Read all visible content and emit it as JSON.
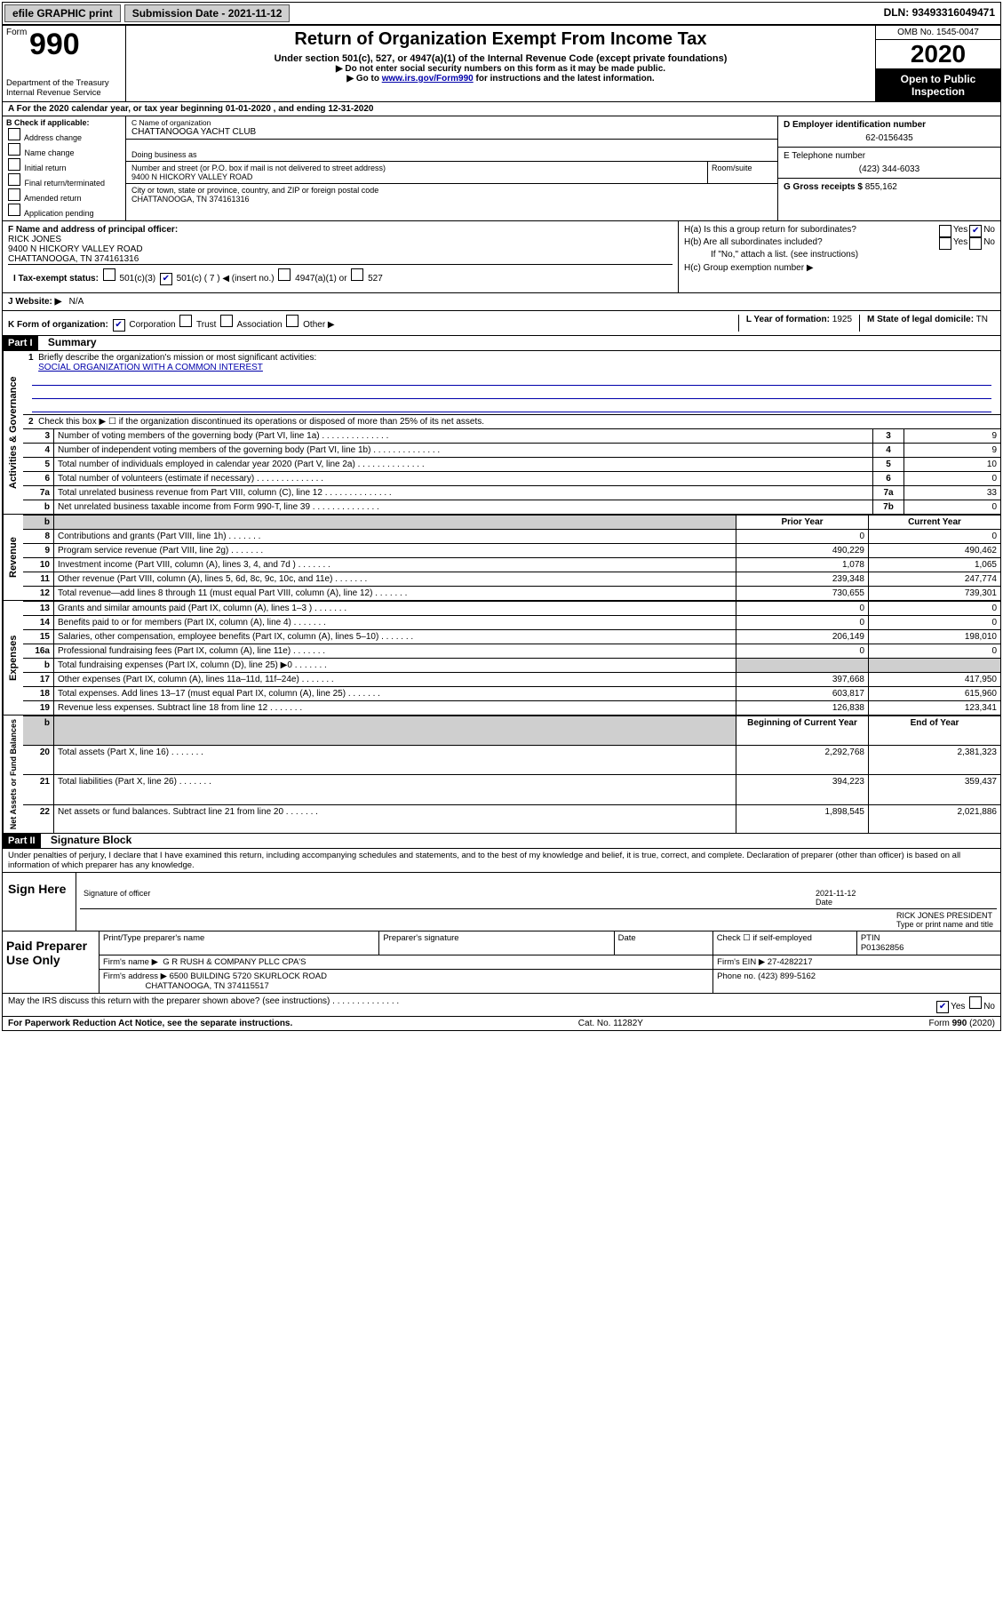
{
  "topbar": {
    "efile": "efile GRAPHIC print",
    "submission_label": "Submission Date - ",
    "submission_date": "2021-11-12",
    "dln_label": "DLN: ",
    "dln": "93493316049471"
  },
  "header": {
    "form_word": "Form",
    "form_number": "990",
    "dept": "Department of the Treasury",
    "irs": "Internal Revenue Service",
    "title": "Return of Organization Exempt From Income Tax",
    "subtitle": "Under section 501(c), 527, or 4947(a)(1) of the Internal Revenue Code (except private foundations)",
    "inst1": "▶ Do not enter social security numbers on this form as it may be made public.",
    "inst2_pre": "▶ Go to ",
    "inst2_link": "www.irs.gov/Form990",
    "inst2_post": " for instructions and the latest information.",
    "omb": "OMB No. 1545-0047",
    "year": "2020",
    "open": "Open to Public Inspection"
  },
  "a_row": "A For the 2020 calendar year, or tax year beginning 01-01-2020   , and ending 12-31-2020",
  "section_b": {
    "label": "B Check if applicable:",
    "opts": [
      "Address change",
      "Name change",
      "Initial return",
      "Final return/terminated",
      "Amended return",
      "Application pending"
    ]
  },
  "section_c": {
    "name_label": "C Name of organization",
    "name": "CHATTANOOGA YACHT CLUB",
    "dba_label": "Doing business as",
    "addr_label": "Number and street (or P.O. box if mail is not delivered to street address)",
    "room_label": "Room/suite",
    "addr": "9400 N HICKORY VALLEY ROAD",
    "city_label": "City or town, state or province, country, and ZIP or foreign postal code",
    "city": "CHATTANOOGA, TN  374161316"
  },
  "section_d": {
    "label": "D Employer identification number",
    "value": "62-0156435"
  },
  "section_e": {
    "label": "E Telephone number",
    "value": "(423) 344-6033"
  },
  "section_g": {
    "label": "G Gross receipts $",
    "value": "855,162"
  },
  "section_f": {
    "label": "F Name and address of principal officer:",
    "name": "RICK JONES",
    "addr1": "9400 N HICKORY VALLEY ROAD",
    "addr2": "CHATTANOOGA, TN  374161316"
  },
  "section_h": {
    "ha": "H(a)  Is this a group return for subordinates?",
    "hb": "H(b)  Are all subordinates included?",
    "hb_note": "If \"No,\" attach a list. (see instructions)",
    "hc": "H(c)  Group exemption number ▶"
  },
  "section_i": {
    "label": "I  Tax-exempt status:",
    "opt1": "501(c)(3)",
    "opt2_pre": "501(c) ( ",
    "opt2_num": "7",
    "opt2_post": " ) ◀ (insert no.)",
    "opt3": "4947(a)(1) or",
    "opt4": "527"
  },
  "section_j": {
    "label": "J  Website: ▶",
    "value": "N/A"
  },
  "section_k": {
    "label": "K Form of organization:",
    "opts": [
      "Corporation",
      "Trust",
      "Association",
      "Other ▶"
    ]
  },
  "section_l": {
    "label": "L Year of formation:",
    "value": "1925"
  },
  "section_m": {
    "label": "M State of legal domicile:",
    "value": "TN"
  },
  "part1": {
    "tag": "Part I",
    "title": "Summary",
    "l1": "Briefly describe the organization's mission or most significant activities:",
    "mission": "SOCIAL ORGANIZATION WITH A COMMON INTEREST",
    "l2": "Check this box ▶ ☐  if the organization discontinued its operations or disposed of more than 25% of its net assets.",
    "rows_ag": [
      {
        "n": "3",
        "d": "Number of voting members of the governing body (Part VI, line 1a)",
        "b": "3",
        "v": "9"
      },
      {
        "n": "4",
        "d": "Number of independent voting members of the governing body (Part VI, line 1b)",
        "b": "4",
        "v": "9"
      },
      {
        "n": "5",
        "d": "Total number of individuals employed in calendar year 2020 (Part V, line 2a)",
        "b": "5",
        "v": "10"
      },
      {
        "n": "6",
        "d": "Total number of volunteers (estimate if necessary)",
        "b": "6",
        "v": "0"
      },
      {
        "n": "7a",
        "d": "Total unrelated business revenue from Part VIII, column (C), line 12",
        "b": "7a",
        "v": "33"
      },
      {
        "n": "b",
        "d": "Net unrelated business taxable income from Form 990-T, line 39",
        "b": "7b",
        "v": "0"
      }
    ],
    "hdr_prior": "Prior Year",
    "hdr_curr": "Current Year",
    "section_rev_label": "Revenue",
    "rows_rev": [
      {
        "n": "8",
        "d": "Contributions and grants (Part VIII, line 1h)",
        "p": "0",
        "c": "0"
      },
      {
        "n": "9",
        "d": "Program service revenue (Part VIII, line 2g)",
        "p": "490,229",
        "c": "490,462"
      },
      {
        "n": "10",
        "d": "Investment income (Part VIII, column (A), lines 3, 4, and 7d )",
        "p": "1,078",
        "c": "1,065"
      },
      {
        "n": "11",
        "d": "Other revenue (Part VIII, column (A), lines 5, 6d, 8c, 9c, 10c, and 11e)",
        "p": "239,348",
        "c": "247,774"
      },
      {
        "n": "12",
        "d": "Total revenue—add lines 8 through 11 (must equal Part VIII, column (A), line 12)",
        "p": "730,655",
        "c": "739,301"
      }
    ],
    "section_exp_label": "Expenses",
    "rows_exp": [
      {
        "n": "13",
        "d": "Grants and similar amounts paid (Part IX, column (A), lines 1–3 )",
        "p": "0",
        "c": "0"
      },
      {
        "n": "14",
        "d": "Benefits paid to or for members (Part IX, column (A), line 4)",
        "p": "0",
        "c": "0"
      },
      {
        "n": "15",
        "d": "Salaries, other compensation, employee benefits (Part IX, column (A), lines 5–10)",
        "p": "206,149",
        "c": "198,010"
      },
      {
        "n": "16a",
        "d": "Professional fundraising fees (Part IX, column (A), line 11e)",
        "p": "0",
        "c": "0"
      },
      {
        "n": "b",
        "d": "Total fundraising expenses (Part IX, column (D), line 25) ▶0",
        "p": "",
        "c": "",
        "grey": true
      },
      {
        "n": "17",
        "d": "Other expenses (Part IX, column (A), lines 11a–11d, 11f–24e)",
        "p": "397,668",
        "c": "417,950"
      },
      {
        "n": "18",
        "d": "Total expenses. Add lines 13–17 (must equal Part IX, column (A), line 25)",
        "p": "603,817",
        "c": "615,960"
      },
      {
        "n": "19",
        "d": "Revenue less expenses. Subtract line 18 from line 12",
        "p": "126,838",
        "c": "123,341"
      }
    ],
    "hdr_beg": "Beginning of Current Year",
    "hdr_end": "End of Year",
    "section_net_label": "Net Assets or Fund Balances",
    "rows_net": [
      {
        "n": "20",
        "d": "Total assets (Part X, line 16)",
        "p": "2,292,768",
        "c": "2,381,323"
      },
      {
        "n": "21",
        "d": "Total liabilities (Part X, line 26)",
        "p": "394,223",
        "c": "359,437"
      },
      {
        "n": "22",
        "d": "Net assets or fund balances. Subtract line 21 from line 20",
        "p": "1,898,545",
        "c": "2,021,886"
      }
    ]
  },
  "part2": {
    "tag": "Part II",
    "title": "Signature Block",
    "declaration": "Under penalties of perjury, I declare that I have examined this return, including accompanying schedules and statements, and to the best of my knowledge and belief, it is true, correct, and complete. Declaration of preparer (other than officer) is based on all information of which preparer has any knowledge.",
    "sign_here": "Sign Here",
    "sig_officer": "Signature of officer",
    "sig_date_label": "Date",
    "sig_date": "2021-11-12",
    "officer_name": "RICK JONES PRESIDENT",
    "type_name": "Type or print name and title",
    "paid_prep": "Paid Preparer Use Only",
    "prep_name_label": "Print/Type preparer's name",
    "prep_sig_label": "Preparer's signature",
    "date_label": "Date",
    "check_self": "Check ☐ if self-employed",
    "ptin_label": "PTIN",
    "ptin": "P01362856",
    "firm_name_label": "Firm's name    ▶",
    "firm_name": "G R RUSH & COMPANY PLLC CPA'S",
    "firm_ein_label": "Firm's EIN ▶",
    "firm_ein": "27-4282217",
    "firm_addr_label": "Firm's address ▶",
    "firm_addr1": "6500 BUILDING 5720 SKURLOCK ROAD",
    "firm_addr2": "CHATTANOOGA, TN  374115517",
    "firm_phone_label": "Phone no.",
    "firm_phone": "(423) 899-5162",
    "discuss": "May the IRS discuss this return with the preparer shown above? (see instructions)"
  },
  "footer": {
    "pra": "For Paperwork Reduction Act Notice, see the separate instructions.",
    "cat": "Cat. No. 11282Y",
    "form": "Form 990 (2020)"
  },
  "colors": {
    "link": "#0000aa",
    "grey": "#cfcfcf"
  }
}
